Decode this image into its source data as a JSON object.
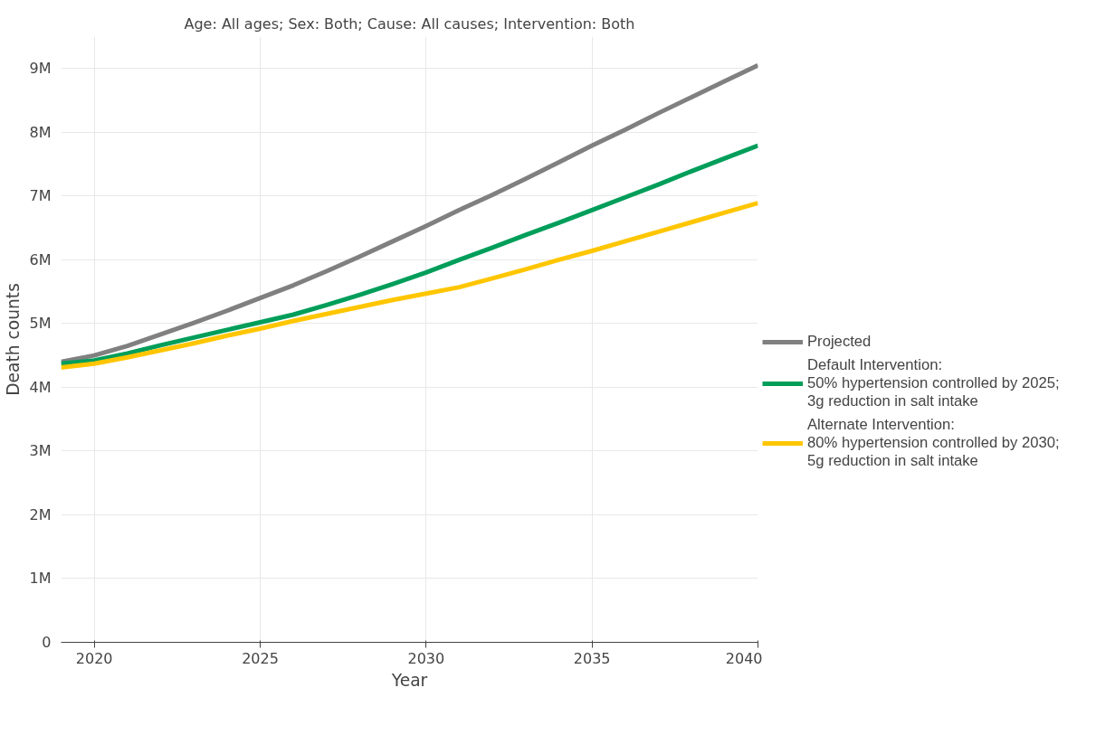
{
  "chart_data": {
    "type": "line",
    "title": "Age: All ages; Sex: Both; Cause: All causes; Intervention: Both",
    "xlabel": "Year",
    "ylabel": "Death counts",
    "x": [
      2019,
      2020,
      2021,
      2022,
      2023,
      2024,
      2025,
      2026,
      2027,
      2028,
      2029,
      2030,
      2031,
      2032,
      2033,
      2034,
      2035,
      2036,
      2037,
      2038,
      2039,
      2040
    ],
    "series": [
      {
        "name": "Projected",
        "color": "#808080",
        "values": [
          4400000,
          4500000,
          4650000,
          4830000,
          5010000,
          5200000,
          5400000,
          5600000,
          5820000,
          6050000,
          6290000,
          6530000,
          6780000,
          7020000,
          7270000,
          7530000,
          7790000,
          8040000,
          8300000,
          8550000,
          8800000,
          9050000
        ]
      },
      {
        "name": "Default Intervention:\n50% hypertension controlled by 2025;\n3g reduction in salt intake",
        "color": "#009e5a",
        "values": [
          4370000,
          4420000,
          4530000,
          4660000,
          4780000,
          4900000,
          5020000,
          5140000,
          5290000,
          5450000,
          5620000,
          5800000,
          6000000,
          6190000,
          6390000,
          6580000,
          6780000,
          6980000,
          7180000,
          7390000,
          7590000,
          7790000
        ]
      },
      {
        "name": "Alternate Intervention:\n80% hypertension controlled by 2030;\n5g reduction in salt intake",
        "color": "#ffc600",
        "values": [
          4310000,
          4370000,
          4470000,
          4580000,
          4690000,
          4810000,
          4920000,
          5040000,
          5150000,
          5260000,
          5370000,
          5470000,
          5570000,
          5710000,
          5850000,
          6000000,
          6140000,
          6290000,
          6440000,
          6590000,
          6740000,
          6890000
        ]
      }
    ],
    "xlim": [
      2019,
      2040
    ],
    "xticks": [
      2020,
      2025,
      2030,
      2035,
      2040
    ],
    "ylim": [
      0,
      9500000
    ],
    "yticks": [
      {
        "value": 0,
        "label": "0"
      },
      {
        "value": 1000000,
        "label": "1M"
      },
      {
        "value": 2000000,
        "label": "2M"
      },
      {
        "value": 3000000,
        "label": "3M"
      },
      {
        "value": 4000000,
        "label": "4M"
      },
      {
        "value": 5000000,
        "label": "5M"
      },
      {
        "value": 6000000,
        "label": "6M"
      },
      {
        "value": 7000000,
        "label": "7M"
      },
      {
        "value": 8000000,
        "label": "8M"
      },
      {
        "value": 9000000,
        "label": "9M"
      }
    ],
    "grid": true,
    "legend": "right",
    "marker": "none",
    "line_style": "solid"
  }
}
